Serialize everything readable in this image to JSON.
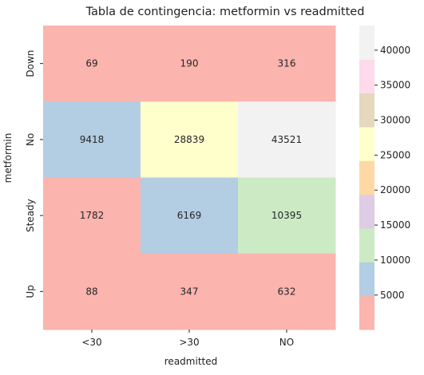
{
  "chart_data": {
    "type": "heatmap",
    "title": "Tabla de contingencia: metformin vs readmitted",
    "xlabel": "readmitted",
    "ylabel": "metformin",
    "x_categories": [
      "<30",
      ">30",
      "NO"
    ],
    "y_categories": [
      "Down",
      "No",
      "Steady",
      "Up"
    ],
    "values": [
      [
        69,
        190,
        316
      ],
      [
        9418,
        28839,
        43521
      ],
      [
        1782,
        6169,
        10395
      ],
      [
        88,
        347,
        632
      ]
    ],
    "colormap": "Pastel1",
    "colorbar": {
      "range": [
        69,
        43521
      ],
      "ticks": [
        5000,
        10000,
        15000,
        20000,
        25000,
        30000,
        35000,
        40000
      ],
      "tick_labels": [
        "5000",
        "10000",
        "15000",
        "20000",
        "25000",
        "30000",
        "35000",
        "40000"
      ],
      "colors": [
        "#fbb4ae",
        "#b3cde3",
        "#ccebc5",
        "#decbe4",
        "#fed9a6",
        "#ffffcc",
        "#e5d8bd",
        "#fddaec",
        "#f2f2f2"
      ]
    }
  }
}
